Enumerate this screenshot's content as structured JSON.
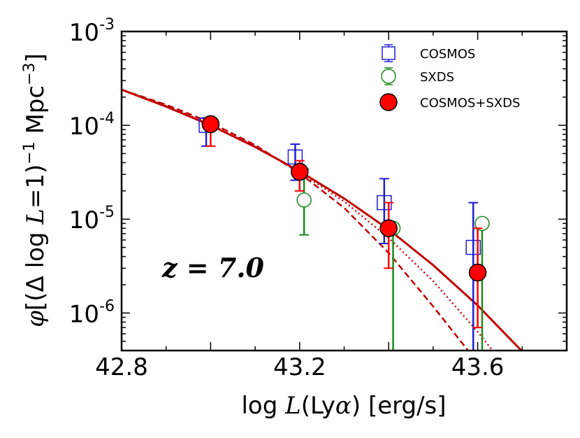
{
  "chart_data": {
    "type": "scatter",
    "title": "",
    "xlabel": "log L(Lyα) [erg/s]",
    "xlabel_parts": [
      "log ",
      "L",
      "(Ly",
      "α",
      ") [erg/s]"
    ],
    "ylabel": "φ[(Δ log L=1)⁻¹ Mpc⁻³]",
    "ylabel_parts": [
      "φ",
      "[(Δ log ",
      "L",
      "=1)",
      "−1",
      " Mpc",
      "−3",
      "]"
    ],
    "xlim": [
      42.8,
      43.8
    ],
    "ylim_log10": [
      -6.4,
      -3.0
    ],
    "yscale": "log",
    "x_ticks": [
      {
        "value": 42.8,
        "label": "42.8"
      },
      {
        "value": 43.2,
        "label": "43.2"
      },
      {
        "value": 43.6,
        "label": "43.6"
      }
    ],
    "y_ticks": [
      {
        "value": -3,
        "base": "10",
        "exp": "-3"
      },
      {
        "value": -4,
        "base": "10",
        "exp": "-4"
      },
      {
        "value": -5,
        "base": "10",
        "exp": "-5"
      },
      {
        "value": -6,
        "base": "10",
        "exp": "-6"
      }
    ],
    "annotation": "z = 7.0",
    "legend_position": "top-right",
    "series": [
      {
        "name": "COSMOS",
        "marker": "square",
        "color": "#1f1fd6",
        "points": [
          {
            "x": 42.99,
            "y": 0.0001,
            "ylo": 6e-05,
            "yhi": 0.00012
          },
          {
            "x": 43.19,
            "y": 4.6e-05,
            "ylo": 2.6e-05,
            "yhi": 6.3e-05
          },
          {
            "x": 43.39,
            "y": 1.5e-05,
            "ylo": 5.5e-06,
            "yhi": 2.7e-05
          },
          {
            "x": 43.59,
            "y": 5e-06,
            "ylo": 3.7e-07,
            "yhi": 1.5e-05
          }
        ]
      },
      {
        "name": "SXDS",
        "marker": "circle-open",
        "color": "#1a8a1a",
        "points": [
          {
            "x": 43.21,
            "y": 1.6e-05,
            "ylo": 6.8e-06,
            "yhi": 3.4e-05
          },
          {
            "x": 43.41,
            "y": 8e-06,
            "ylo": 3.7e-07,
            "yhi": 8e-06
          },
          {
            "x": 43.61,
            "y": 9e-06,
            "ylo": 3.7e-07,
            "yhi": 9e-06
          }
        ]
      },
      {
        "name": "COSMOS+SXDS",
        "marker": "circle-filled",
        "color": "#ff0000",
        "points": [
          {
            "x": 43.0,
            "y": 0.000103,
            "ylo": 6e-05,
            "yhi": 0.00012
          },
          {
            "x": 43.2,
            "y": 3.2e-05,
            "ylo": 2e-05,
            "yhi": 4.2e-05
          },
          {
            "x": 43.4,
            "y": 8e-06,
            "ylo": 3e-06,
            "yhi": 1.5e-05
          },
          {
            "x": 43.6,
            "y": 2.7e-06,
            "ylo": 7e-07,
            "yhi": 8e-06
          }
        ]
      }
    ],
    "fit_curves": [
      {
        "name": "solid fit",
        "style": "solid",
        "color": "#c00000",
        "x": [
          42.8,
          42.9,
          43.0,
          43.1,
          43.2,
          43.3,
          43.4,
          43.5,
          43.6,
          43.7,
          43.75
        ],
        "logy": [
          -3.62,
          -3.8,
          -4.0,
          -4.23,
          -4.49,
          -4.78,
          -5.11,
          -5.49,
          -5.92,
          -6.41,
          -6.67
        ]
      },
      {
        "name": "dashed fit",
        "style": "dashed",
        "color": "#c00000",
        "x": [
          42.8,
          42.9,
          43.0,
          43.1,
          43.2,
          43.3,
          43.4,
          43.5,
          43.6,
          43.63
        ],
        "logy": [
          -3.62,
          -3.78,
          -3.97,
          -4.21,
          -4.51,
          -4.88,
          -5.36,
          -5.93,
          -6.53,
          -6.79
        ]
      },
      {
        "name": "dotted fit",
        "style": "dotted",
        "color": "#c00000",
        "x": [
          42.8,
          42.9,
          43.0,
          43.1,
          43.2,
          43.3,
          43.4,
          43.5,
          43.6,
          43.68
        ],
        "logy": [
          -3.62,
          -3.79,
          -3.99,
          -4.22,
          -4.5,
          -4.81,
          -5.2,
          -5.66,
          -6.2,
          -6.68
        ]
      }
    ]
  }
}
